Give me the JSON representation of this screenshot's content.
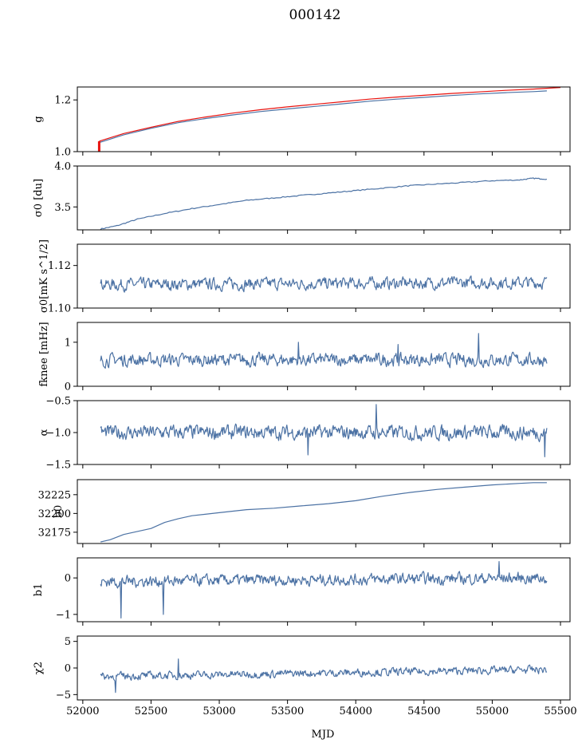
{
  "title": "000142",
  "colors": {
    "series": "#4c72a4",
    "overlay": "#e8130f"
  },
  "chart_data": {
    "type": "line",
    "shared_x": {
      "label": "MJD",
      "lim": [
        51960,
        55570
      ],
      "ticks": [
        52000,
        52500,
        53000,
        53500,
        54000,
        54500,
        55000,
        55500
      ],
      "tick_labels": [
        "52000",
        "52500",
        "53000",
        "53500",
        "54000",
        "54500",
        "55000",
        "55500"
      ]
    },
    "panels": [
      {
        "id": "g",
        "ylabel": "g",
        "ylim": [
          1.0,
          1.25
        ],
        "yticks": [
          1.0,
          1.2
        ],
        "ytick_labels": [
          "1.0",
          "1.2"
        ],
        "series": [
          {
            "color": "series",
            "x": [
              52120,
              52300,
              52500,
              52700,
              52900,
              53100,
              53300,
              53500,
              53700,
              53900,
              54100,
              54300,
              54500,
              54700,
              54900,
              55100,
              55300,
              55400
            ],
            "y": [
              1.035,
              1.065,
              1.09,
              1.112,
              1.128,
              1.142,
              1.155,
              1.165,
              1.175,
              1.185,
              1.195,
              1.203,
              1.21,
              1.217,
              1.223,
              1.228,
              1.232,
              1.235
            ]
          },
          {
            "color": "overlay",
            "x": [
              52120,
              52300,
              52500,
              52700,
              52900,
              53100,
              53300,
              53500,
              53700,
              53900,
              54100,
              54300,
              54500,
              54700,
              54900,
              55100,
              55300,
              55500
            ],
            "y": [
              1.04,
              1.07,
              1.094,
              1.117,
              1.134,
              1.149,
              1.162,
              1.173,
              1.183,
              1.193,
              1.203,
              1.211,
              1.218,
              1.225,
              1.231,
              1.237,
              1.242,
              1.248
            ]
          }
        ]
      },
      {
        "id": "sigma0-du",
        "ylabel": "σ0 [du]",
        "ylim": [
          3.22,
          4.0
        ],
        "yticks": [
          3.5,
          4.0
        ],
        "ytick_labels": [
          "3.5",
          "4.0"
        ],
        "series": [
          {
            "color": "series",
            "x": [
              52130,
              52250,
              52400,
              52600,
              52800,
              53000,
              53200,
              53400,
              53600,
              53800,
              54000,
              54200,
              54400,
              54600,
              54800,
              55000,
              55200,
              55300,
              55400
            ],
            "y": [
              3.23,
              3.27,
              3.35,
              3.42,
              3.48,
              3.53,
              3.58,
              3.61,
              3.64,
              3.67,
              3.7,
              3.73,
              3.76,
              3.78,
              3.8,
              3.82,
              3.83,
              3.85,
              3.84
            ]
          }
        ]
      },
      {
        "id": "sigma0-mk",
        "ylabel": "σ0[mK s^1/2]",
        "ylim": [
          1.1,
          1.13
        ],
        "yticks": [
          1.1,
          1.12
        ],
        "ytick_labels": [
          "1.10",
          "1.12"
        ],
        "series": [
          {
            "color": "series",
            "mean": 1.111,
            "noise": 0.0025,
            "trend": 0.001
          }
        ]
      },
      {
        "id": "fknee",
        "ylabel": "fknee [mHz]",
        "ylim": [
          0,
          1.45
        ],
        "yticks": [
          0,
          1
        ],
        "ytick_labels": [
          "0",
          "1"
        ],
        "series": [
          {
            "color": "series",
            "mean": 0.6,
            "noise": 0.13,
            "spikes": [
              [
                54900,
                1.2
              ],
              [
                53580,
                1.0
              ],
              [
                54310,
                0.95
              ]
            ]
          }
        ]
      },
      {
        "id": "alpha",
        "ylabel": "α",
        "ylim": [
          -1.5,
          -0.5
        ],
        "yticks": [
          -1.5,
          -1.0,
          -0.5
        ],
        "ytick_labels": [
          "−1.5",
          "−1.0",
          "−0.5"
        ],
        "series": [
          {
            "color": "series",
            "mean": -1.0,
            "noise": 0.1,
            "spikes": [
              [
                54150,
                -0.56
              ],
              [
                55385,
                -1.38
              ],
              [
                53650,
                -1.35
              ]
            ]
          }
        ]
      },
      {
        "id": "b0",
        "ylabel": "b0",
        "ylim": [
          32160,
          32245
        ],
        "yticks": [
          32175,
          32200,
          32225
        ],
        "ytick_labels": [
          "32175",
          "32200",
          "32225"
        ],
        "series": [
          {
            "color": "series",
            "x": [
              52130,
              52200,
              52300,
              52400,
              52500,
              52600,
              52700,
              52800,
              53000,
              53200,
              53400,
              53600,
              53800,
              54000,
              54200,
              54400,
              54600,
              54800,
              55000,
              55200,
              55300,
              55400
            ],
            "y": [
              32162,
              32165,
              32172,
              32176,
              32180,
              32188,
              32193,
              32197,
              32201,
              32205,
              32207,
              32210,
              32213,
              32217,
              32223,
              32228,
              32232,
              32235,
              32238,
              32240,
              32241,
              32241
            ]
          }
        ]
      },
      {
        "id": "b1",
        "ylabel": "b1",
        "ylim": [
          -1.2,
          0.55
        ],
        "yticks": [
          -1,
          0
        ],
        "ytick_labels": [
          "−1",
          "0"
        ],
        "series": [
          {
            "color": "series",
            "mean": -0.1,
            "noise": 0.14,
            "trend": 0.1,
            "spikes": [
              [
                52280,
                -1.1
              ],
              [
                52590,
                -1.0
              ],
              [
                55050,
                0.45
              ]
            ]
          }
        ]
      },
      {
        "id": "chi2",
        "ylabel": "χ2",
        "ylim": [
          -6,
          6
        ],
        "yticks": [
          -5,
          0,
          5
        ],
        "ytick_labels": [
          "−5",
          "0",
          "5"
        ],
        "series": [
          {
            "color": "series",
            "mean": -1.6,
            "noise": 0.65,
            "trend": 1.3,
            "spikes": [
              [
                52240,
                -4.6
              ],
              [
                52700,
                1.7
              ]
            ]
          }
        ]
      }
    ]
  }
}
